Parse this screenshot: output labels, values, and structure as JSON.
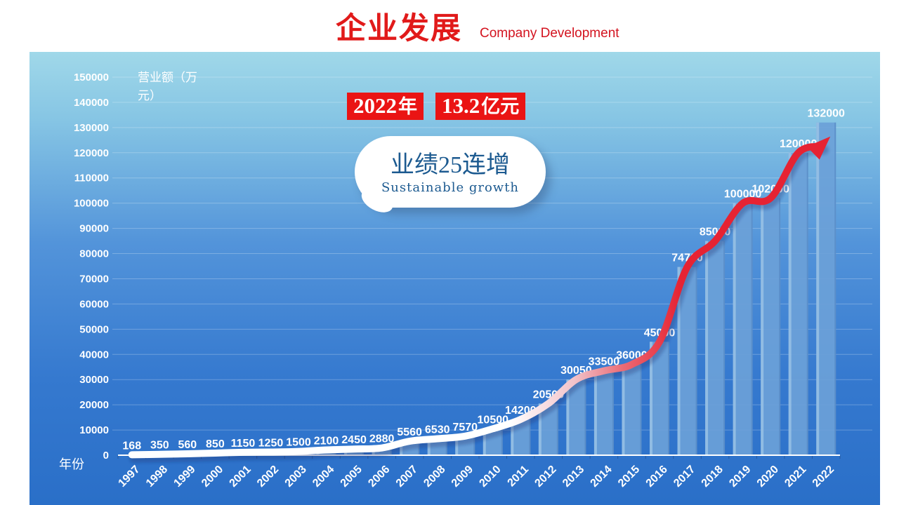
{
  "header": {
    "title": "企业发展",
    "subtitle": "Company Development"
  },
  "badge": {
    "year_num": "2022",
    "year_unit": "年",
    "value_num": "13.2",
    "value_unit": "亿元"
  },
  "callout": {
    "line1": "业绩25连增",
    "line2": "Sustainable growth"
  },
  "chart_data": {
    "type": "bar",
    "title": "",
    "xlabel": "年份",
    "ylabel": "营业额（万元）",
    "ylim": [
      0,
      150000
    ],
    "ytick_step": 10000,
    "grid": true,
    "legend": "none",
    "categories": [
      "1997",
      "1998",
      "1999",
      "2000",
      "2001",
      "2002",
      "2003",
      "2004",
      "2005",
      "2006",
      "2007",
      "2008",
      "2009",
      "2010",
      "2011",
      "2012",
      "2013",
      "2014",
      "2015",
      "2016",
      "2017",
      "2018",
      "2019",
      "2020",
      "2021",
      "2022"
    ],
    "values": [
      168,
      350,
      560,
      850,
      1150,
      1250,
      1500,
      2100,
      2450,
      2880,
      5560,
      6530,
      7570,
      10500,
      14200,
      20500,
      30050,
      33500,
      36000,
      45000,
      74700,
      85000,
      100000,
      102000,
      120000,
      132000
    ],
    "annotations": {
      "trend_arrow": "curved arrow following bar tops, white at start fading to red at the end, arrowhead at 2022"
    }
  },
  "colors": {
    "accent_red": "#e11a1a",
    "chip_red": "#ea1414",
    "panel_top": "#a0d8e9",
    "panel_bottom": "#2a6fc8",
    "bar": "#6ba1d8",
    "bar_highlight": "#a8cce9",
    "bar_shade": "#4d80bc",
    "grid": "rgba(255,255,255,0.25)",
    "axis": "#ffffff",
    "line_white": "#ffffff",
    "line_pink": "#f2c3ca",
    "line_red": "#e62333",
    "label_text": "#ffffff",
    "bubble_text": "#1c5a90"
  }
}
